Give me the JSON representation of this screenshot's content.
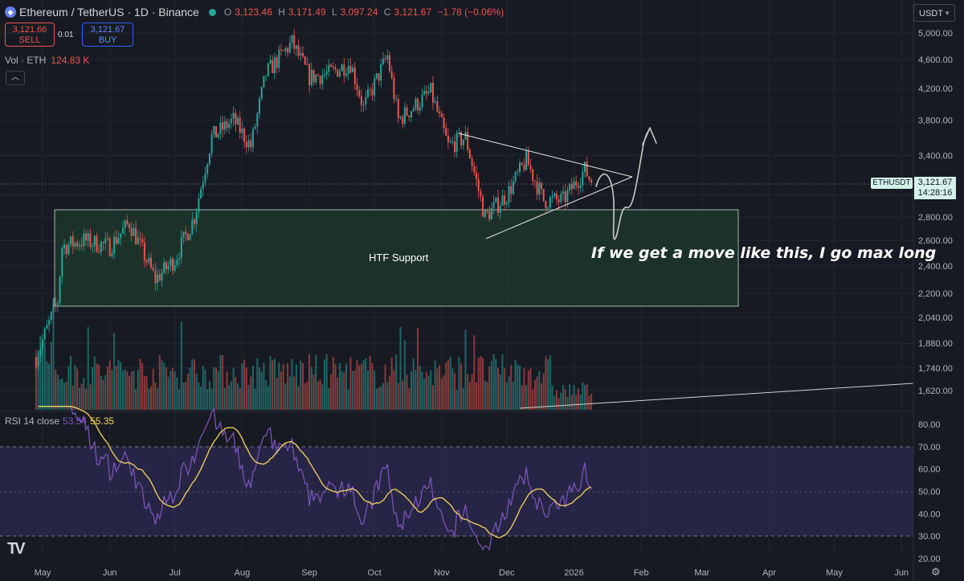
{
  "header": {
    "symbol": "Ethereum / TetherUS · 1D · Binance",
    "ohlc": {
      "o_label": "O",
      "o": "3,123.46",
      "h_label": "H",
      "h": "3,171.49",
      "l_label": "L",
      "l": "3,097.24",
      "c_label": "C",
      "c": "3,121.67",
      "change": "−1.78 (−0.06%)"
    }
  },
  "trade": {
    "sell_price": "3,121.66",
    "sell_label": "SELL",
    "spread": "0.01",
    "buy_price": "3,121.67",
    "buy_label": "BUY"
  },
  "volume": {
    "label": "Vol · ETH",
    "value": "124.83 K"
  },
  "currency": "USDT",
  "price_tag": {
    "symbol": "ETHUSDT",
    "price": "3,121.67",
    "countdown": "14:28:16"
  },
  "rsi": {
    "label": "RSI 14 close",
    "value": "53.54",
    "ma_value": "55.35"
  },
  "annotation": "If we get a move like this, I go max long",
  "zone_label": "HTF Support",
  "logo": "TV",
  "colors": {
    "up": "#26a69a",
    "down": "#ef5350",
    "rsi": "#7e57c2",
    "rsi_ma": "#f7d55c",
    "zone": "#1f3a2c"
  },
  "chart_data": [
    {
      "type": "candlestick",
      "title": "Ethereum / TetherUS · 1D · Binance",
      "x_ticks": [
        "May",
        "Jun",
        "Jul",
        "Aug",
        "Sep",
        "Oct",
        "Nov",
        "Dec",
        "2026",
        "Feb",
        "Mar",
        "Apr",
        "May",
        "Jun"
      ],
      "y_ticks": [
        5000,
        4600,
        4200,
        3800,
        3400,
        3000,
        2800,
        2600,
        2400,
        2200,
        2040,
        1880,
        1740,
        1620
      ],
      "y_tick_labels": [
        "5,000.00",
        "4,600.00",
        "4,200.00",
        "3,800.00",
        "3,400.00",
        "3,000.00",
        "2,800.00",
        "2,600.00",
        "2,400.00",
        "2,200.00",
        "2,040.00",
        "1,880.00",
        "1,740.00",
        "1,620.00"
      ],
      "scale": "log",
      "last_price": 3121.67,
      "price_path": [
        [
          "2025-04-28",
          1800
        ],
        [
          "2025-05-08",
          2150
        ],
        [
          "2025-05-10",
          2550
        ],
        [
          "2025-05-20",
          2600
        ],
        [
          "2025-06-01",
          2550
        ],
        [
          "2025-06-10",
          2750
        ],
        [
          "2025-06-22",
          2300
        ],
        [
          "2025-07-01",
          2450
        ],
        [
          "2025-07-10",
          2800
        ],
        [
          "2025-07-18",
          3600
        ],
        [
          "2025-07-28",
          3800
        ],
        [
          "2025-08-05",
          3500
        ],
        [
          "2025-08-12",
          4400
        ],
        [
          "2025-08-24",
          4850
        ],
        [
          "2025-09-01",
          4350
        ],
        [
          "2025-09-10",
          4400
        ],
        [
          "2025-09-20",
          4550
        ],
        [
          "2025-09-26",
          3950
        ],
        [
          "2025-10-07",
          4650
        ],
        [
          "2025-10-12",
          3800
        ],
        [
          "2025-10-27",
          4150
        ],
        [
          "2025-11-04",
          3500
        ],
        [
          "2025-11-12",
          3600
        ],
        [
          "2025-11-21",
          2800
        ],
        [
          "2025-12-01",
          3000
        ],
        [
          "2025-12-10",
          3350
        ],
        [
          "2025-12-18",
          2950
        ],
        [
          "2025-12-27",
          2950
        ],
        [
          "2026-01-06",
          3250
        ],
        [
          "2026-01-09",
          3121.67
        ]
      ],
      "volume_bars": {
        "units": "ETH",
        "last": "124.83 K"
      }
    },
    {
      "type": "line",
      "title": "RSI 14 close",
      "y_ticks": [
        80,
        70,
        60,
        50,
        40,
        30,
        20
      ],
      "y_tick_labels": [
        "80.00",
        "70.00",
        "60.00",
        "50.00",
        "40.00",
        "30.00",
        "20.00"
      ],
      "band": [
        30,
        70
      ],
      "series": [
        {
          "name": "RSI 14 close",
          "last": 53.54
        },
        {
          "name": "MA",
          "last": 55.35
        }
      ]
    }
  ]
}
